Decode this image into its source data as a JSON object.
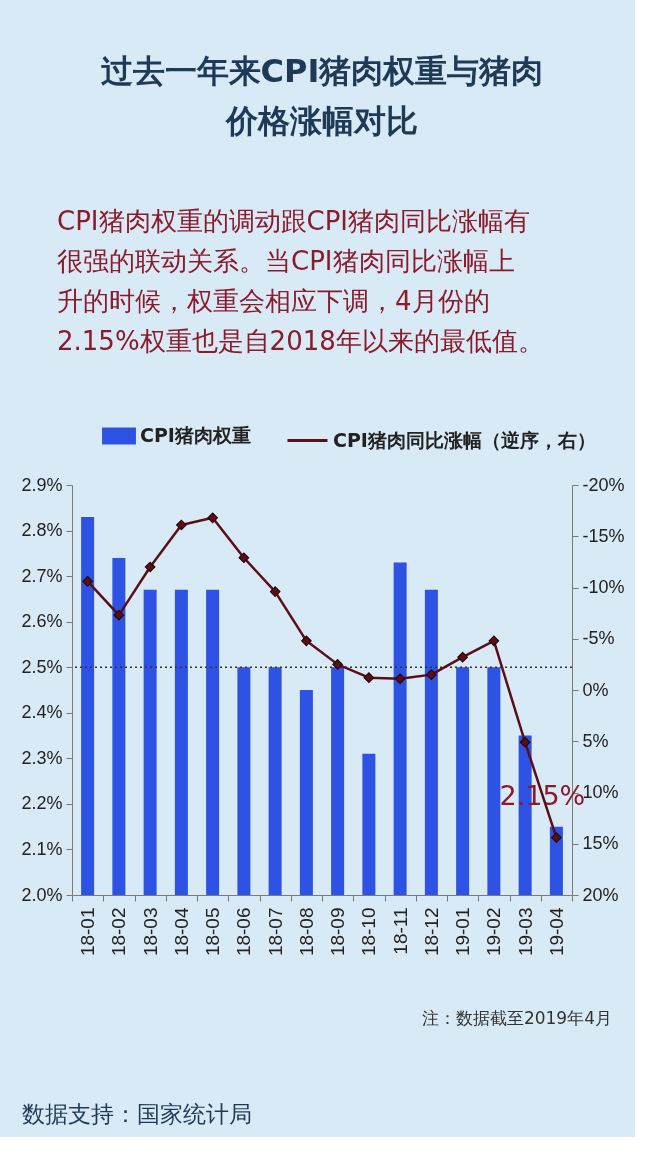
{
  "chart_data": {
    "type": "bar",
    "title": "过去一年来CPI猪肉权重与猪肉价格涨幅对比",
    "subtitle": "CPI猪肉权重的调动跟CPI猪肉同比涨幅有很强的联动关系。当CPI猪肉同比涨幅上升的时候，权重会相应下调，4月份的2.15%权重也是自2018年以来的最低值。",
    "categories": [
      "18-01",
      "18-02",
      "18-03",
      "18-04",
      "18-05",
      "18-06",
      "18-07",
      "18-08",
      "18-09",
      "18-10",
      "18-11",
      "18-12",
      "19-01",
      "19-02",
      "19-03",
      "19-04"
    ],
    "series": [
      {
        "name": "CPI猪肉权重",
        "color": "#2d52e4",
        "values": [
          2.83,
          2.74,
          2.67,
          2.67,
          2.67,
          2.5,
          2.5,
          2.45,
          2.5,
          2.31,
          2.73,
          2.67,
          2.5,
          2.5,
          2.35,
          2.15
        ]
      },
      {
        "name": "CPI猪肉同比涨幅（逆序，右）",
        "type": "line",
        "axis": "y2",
        "color": "#5a0f18",
        "values": [
          -10.6,
          -7.3,
          -12.0,
          -16.1,
          -16.8,
          -12.9,
          -9.6,
          -4.8,
          -2.5,
          -1.2,
          -1.1,
          -1.5,
          -3.2,
          -4.8,
          5.1,
          14.4
        ]
      }
    ],
    "ylim": [
      2.0,
      2.9
    ],
    "yticks": [
      {
        "value": 2.0,
        "label": "2.0%"
      },
      {
        "value": 2.1,
        "label": "2.1%"
      },
      {
        "value": 2.2,
        "label": "2.2%"
      },
      {
        "value": 2.3,
        "label": "2.3%"
      },
      {
        "value": 2.4,
        "label": "2.4%"
      },
      {
        "value": 2.5,
        "label": "2.5%"
      },
      {
        "value": 2.6,
        "label": "2.6%"
      },
      {
        "value": 2.7,
        "label": "2.7%"
      },
      {
        "value": 2.8,
        "label": "2.8%"
      },
      {
        "value": 2.9,
        "label": "2.9%"
      }
    ],
    "y2lim": [
      20,
      -20
    ],
    "y2ticks": [
      {
        "value": -20,
        "label": "-20%"
      },
      {
        "value": -15,
        "label": "-15%"
      },
      {
        "value": -10,
        "label": "-10%"
      },
      {
        "value": -5,
        "label": "-5%"
      },
      {
        "value": 0,
        "label": "0%"
      },
      {
        "value": 5,
        "label": "5%"
      },
      {
        "value": 10,
        "label": "10%"
      },
      {
        "value": 15,
        "label": "15%"
      },
      {
        "value": 20,
        "label": "20%"
      }
    ],
    "ref_lines": [
      {
        "axis": "y",
        "value": 2.5,
        "color": "#333333",
        "line_style": "dotted"
      }
    ],
    "annotations": [
      {
        "text": "2.15%",
        "x": "19-04",
        "y": 2.15
      },
      "注：数据截至2019年4月",
      "数据支持：国家统计局"
    ],
    "legend": "top",
    "marker": "diamond",
    "line_style": "solid"
  }
}
